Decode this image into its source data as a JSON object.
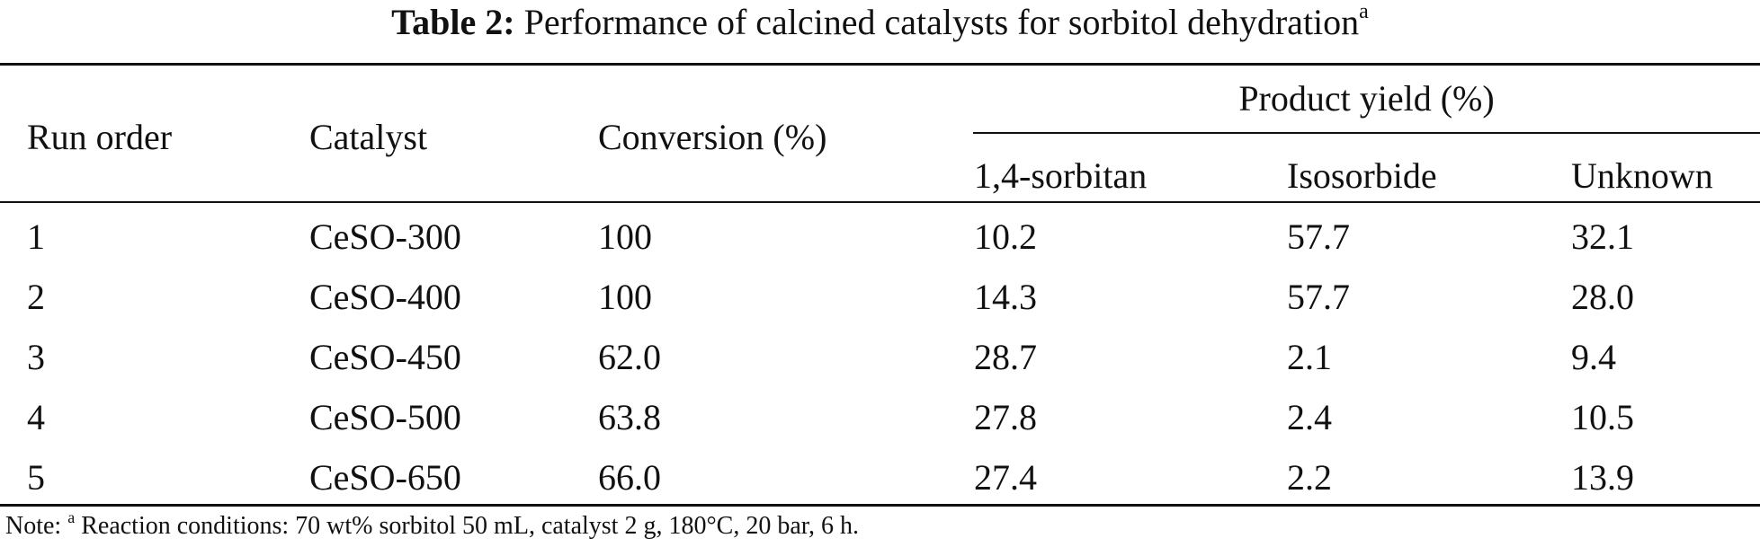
{
  "caption": {
    "label": "Table 2:",
    "text": "Performance of calcined catalysts for sorbitol dehydration",
    "footnote_mark": "a"
  },
  "table": {
    "headers": {
      "run_order": "Run order",
      "catalyst": "Catalyst",
      "conversion": "Conversion (%)",
      "product_yield": "Product yield (%)",
      "sub": [
        "1,4-sorbitan",
        "Isosorbide",
        "Unknown"
      ]
    },
    "rows": [
      [
        "1",
        "CeSO-300",
        "100",
        "10.2",
        "57.7",
        "32.1"
      ],
      [
        "2",
        "CeSO-400",
        "100",
        "14.3",
        "57.7",
        "28.0"
      ],
      [
        "3",
        "CeSO-450",
        "62.0",
        "28.7",
        "2.1",
        "9.4"
      ],
      [
        "4",
        "CeSO-500",
        "63.8",
        "27.8",
        "2.4",
        "10.5"
      ],
      [
        "5",
        "CeSO-650",
        "66.0",
        "27.4",
        "2.2",
        "13.9"
      ]
    ]
  },
  "note": {
    "prefix": "Note:",
    "mark": "a",
    "text": "Reaction conditions: 70 wt% sorbitol 50 mL, catalyst 2 g, 180°C, 20 bar, 6 h."
  }
}
